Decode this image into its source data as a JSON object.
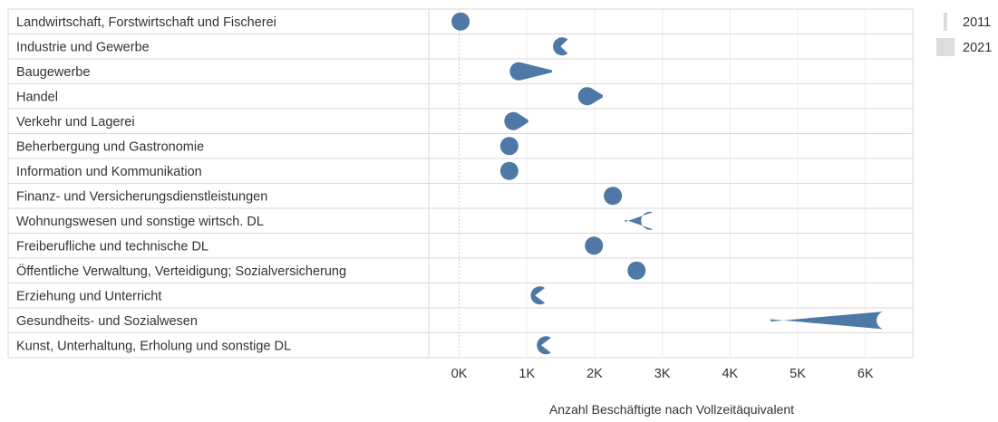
{
  "chart_data": {
    "type": "dot",
    "categories": [
      "Landwirtschaft, Forstwirtschaft und Fischerei",
      "Industrie und Gewerbe",
      "Baugewerbe",
      "Handel",
      "Verkehr und Lagerei",
      "Beherbergung und Gastronomie",
      "Information und Kommunikation",
      "Finanz- und Versicherungsdienstleistungen",
      "Wohnungswesen und sonstige wirtsch. DL",
      "Freiberufliche und technische DL",
      "Öffentliche Verwaltung, Verteidigung; Sozialversicherung",
      "Erziehung und Unterricht",
      "Gesundheits- und Sozialwesen",
      "Kunst, Unterhaltung, Erholung und sonstige DL"
    ],
    "series": [
      {
        "name": "2011",
        "values": [
          20,
          1480,
          1370,
          2120,
          1020,
          760,
          760,
          2380,
          2450,
          2010,
          2660,
          1100,
          4600,
          1190
        ]
      },
      {
        "name": "2021",
        "values": [
          20,
          1690,
          880,
          1890,
          800,
          740,
          740,
          2270,
          2900,
          1990,
          2620,
          1340,
          6320,
          1430
        ]
      }
    ],
    "xlabel": "Anzahl Beschäftigte nach Vollzeitäquivalent",
    "xlim": [
      -450,
      6700
    ],
    "xticks": [
      0,
      1000,
      2000,
      3000,
      4000,
      5000,
      6000
    ],
    "xtick_labels": [
      "0K",
      "1K",
      "2K",
      "3K",
      "4K",
      "5K",
      "6K"
    ],
    "legend": [
      {
        "label": "2011",
        "color": "#dddddd"
      },
      {
        "label": "2021",
        "color": "#dddddd"
      }
    ],
    "legend_position": "top-right",
    "mark_color": "#4e79a7",
    "grid": true
  }
}
